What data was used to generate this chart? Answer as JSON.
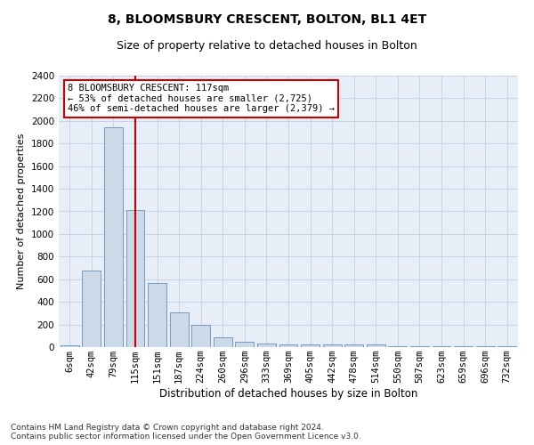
{
  "title": "8, BLOOMSBURY CRESCENT, BOLTON, BL1 4ET",
  "subtitle": "Size of property relative to detached houses in Bolton",
  "xlabel": "Distribution of detached houses by size in Bolton",
  "ylabel": "Number of detached properties",
  "bar_categories": [
    "6sqm",
    "42sqm",
    "79sqm",
    "115sqm",
    "151sqm",
    "187sqm",
    "224sqm",
    "260sqm",
    "296sqm",
    "333sqm",
    "369sqm",
    "405sqm",
    "442sqm",
    "478sqm",
    "514sqm",
    "550sqm",
    "587sqm",
    "623sqm",
    "659sqm",
    "696sqm",
    "732sqm"
  ],
  "bar_values": [
    15,
    680,
    1940,
    1215,
    570,
    310,
    195,
    85,
    45,
    30,
    25,
    25,
    25,
    25,
    20,
    5,
    5,
    5,
    5,
    5,
    5
  ],
  "bar_color": "#ccd9e8",
  "bar_edge_color": "#7799bb",
  "highlight_index": 3,
  "vline_color": "#cc0000",
  "annotation_text": "8 BLOOMSBURY CRESCENT: 117sqm\n← 53% of detached houses are smaller (2,725)\n46% of semi-detached houses are larger (2,379) →",
  "annotation_box_color": "#ffffff",
  "annotation_box_edge_color": "#cc0000",
  "ylim": [
    0,
    2400
  ],
  "yticks": [
    0,
    200,
    400,
    600,
    800,
    1000,
    1200,
    1400,
    1600,
    1800,
    2000,
    2200,
    2400
  ],
  "grid_color": "#c8d4e4",
  "background_color": "#e8eef8",
  "footer_text": "Contains HM Land Registry data © Crown copyright and database right 2024.\nContains public sector information licensed under the Open Government Licence v3.0.",
  "title_fontsize": 10,
  "subtitle_fontsize": 9,
  "xlabel_fontsize": 8.5,
  "ylabel_fontsize": 8,
  "tick_fontsize": 7.5,
  "annotation_fontsize": 7.5,
  "footer_fontsize": 6.5
}
